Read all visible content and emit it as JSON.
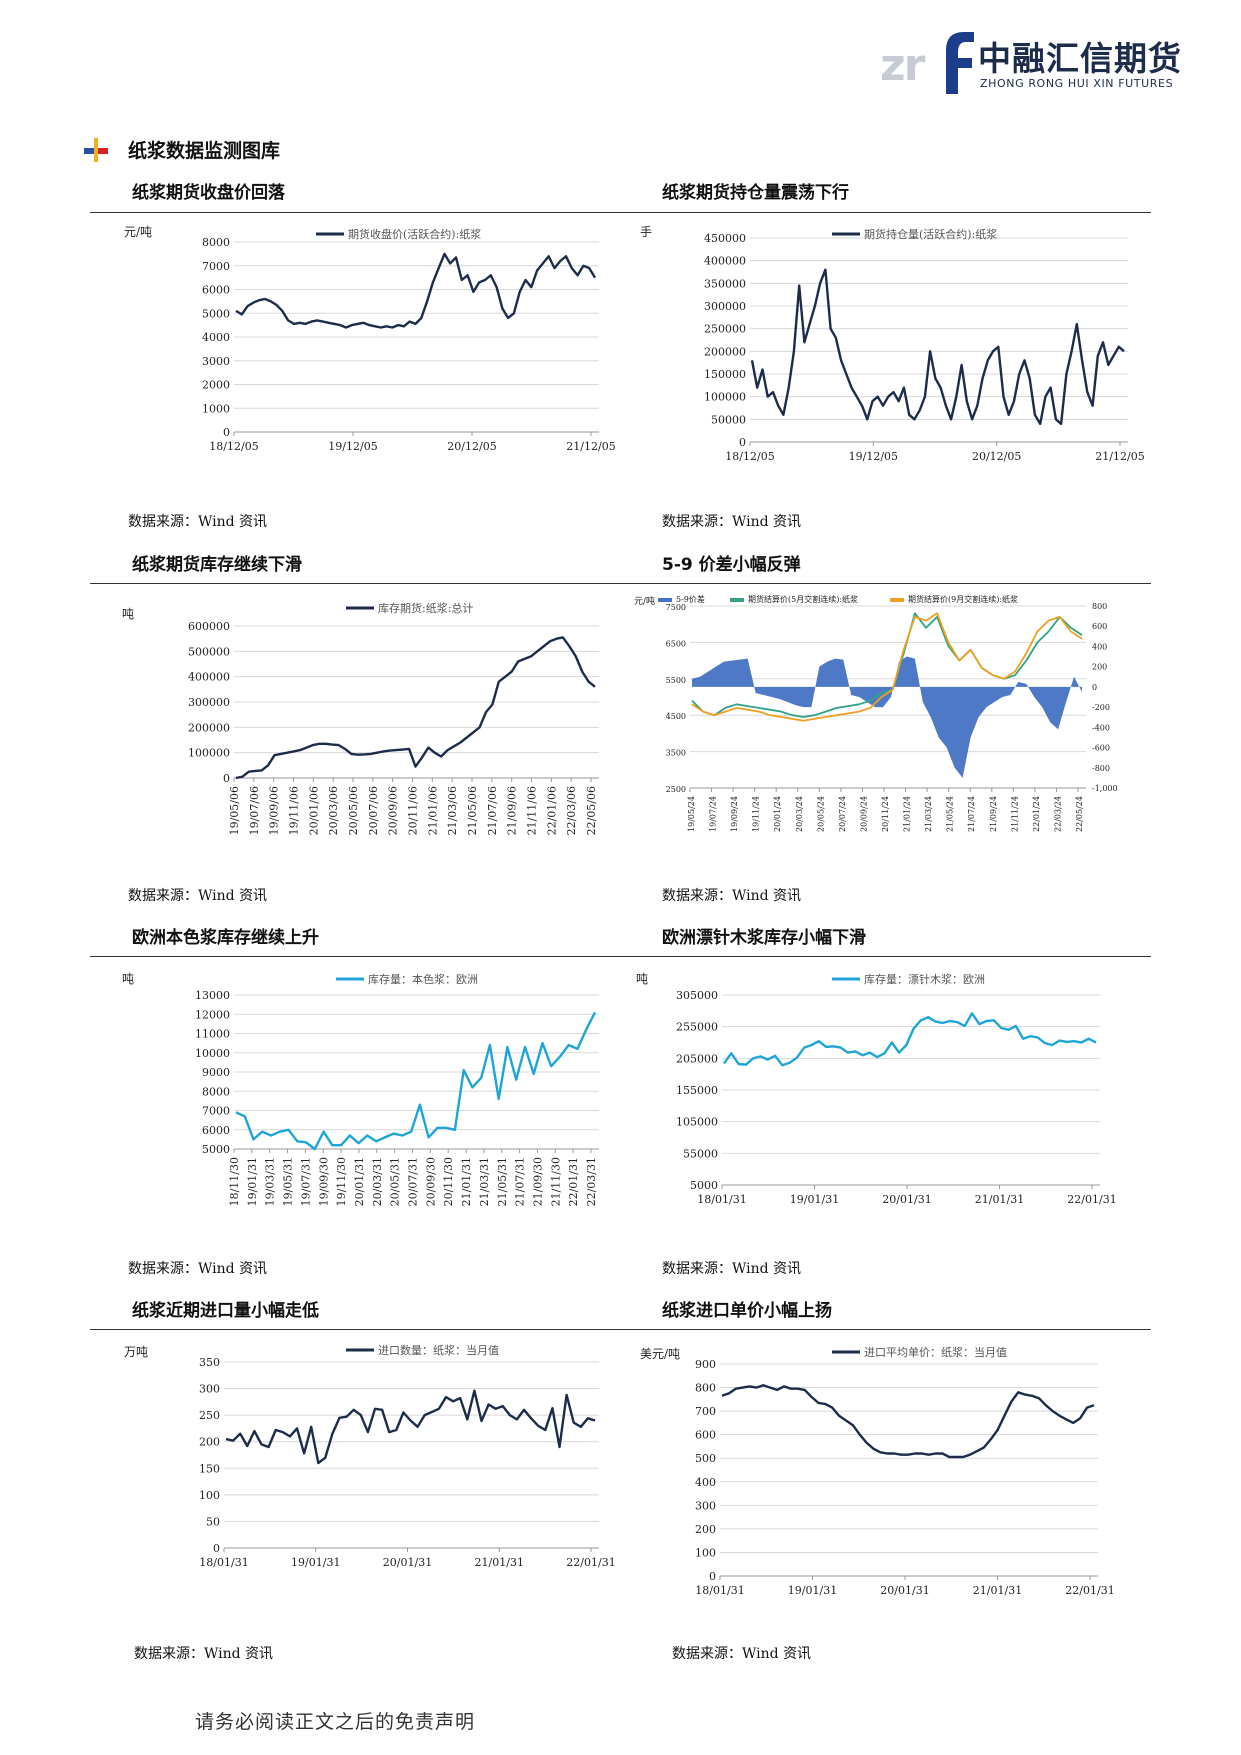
{
  "header": {
    "logo_cn": "中融汇信期货",
    "logo_en": "ZHONG RONG HUI XIN FUTURES",
    "logo_mark": "zrf-logo-icon"
  },
  "section": {
    "title": "纸浆数据监测图库"
  },
  "footer": {
    "text": "请务必阅读正文之后的免责声明"
  },
  "colors": {
    "navy": "#1c2c4a",
    "cyan": "#1ea5d8",
    "blue": "#4472c4",
    "teal": "#2fa38a",
    "orange": "#f0a020"
  },
  "charts": [
    {
      "id": "c1",
      "heading": "纸浆期货收盘价回落",
      "source": "数据来源：Wind 资讯",
      "chart_data": {
        "type": "line",
        "unit": "元/吨",
        "ylim": [
          0,
          8000
        ],
        "yticks": [
          "0",
          "1000",
          "2000",
          "3000",
          "4000",
          "5000",
          "6000",
          "7000",
          "8000"
        ],
        "xticks": [
          "18/12/05",
          "19/12/05",
          "20/12/05",
          "21/12/05"
        ],
        "series": [
          {
            "name": "期货收盘价(活跃合约):纸浆",
            "color": "#1c2c4a",
            "values": [
              5100,
              4950,
              5300,
              5450,
              5550,
              5600,
              5500,
              5350,
              5100,
              4700,
              4550,
              4600,
              4550,
              4650,
              4700,
              4650,
              4600,
              4550,
              4500,
              4400,
              4500,
              4550,
              4600,
              4500,
              4450,
              4400,
              4450,
              4400,
              4500,
              4450,
              4650,
              4550,
              4800,
              5500,
              6300,
              6900,
              7500,
              7100,
              7350,
              6400,
              6600,
              5900,
              6300,
              6400,
              6600,
              6100,
              5200,
              4800,
              5000,
              5900,
              6400,
              6100,
              6800,
              7100,
              7400,
              6900,
              7200,
              7400,
              6900,
              6600,
              7000,
              6900,
              6500
            ]
          }
        ]
      }
    },
    {
      "id": "c2",
      "heading": "纸浆期货持仓量震荡下行",
      "source": "数据来源：Wind 资讯",
      "chart_data": {
        "type": "line",
        "unit": "手",
        "ylim": [
          0,
          450000
        ],
        "yticks": [
          "0",
          "50000",
          "100000",
          "150000",
          "200000",
          "250000",
          "300000",
          "350000",
          "400000",
          "450000"
        ],
        "xticks": [
          "18/12/05",
          "19/12/05",
          "20/12/05",
          "21/12/05"
        ],
        "series": [
          {
            "name": "期货持仓量(活跃合约):纸浆",
            "color": "#1c2c4a",
            "values": [
              180000,
              120000,
              160000,
              100000,
              110000,
              80000,
              60000,
              120000,
              200000,
              345000,
              220000,
              260000,
              300000,
              350000,
              380000,
              250000,
              230000,
              180000,
              150000,
              120000,
              100000,
              80000,
              50000,
              90000,
              100000,
              80000,
              100000,
              110000,
              90000,
              120000,
              60000,
              50000,
              70000,
              100000,
              200000,
              140000,
              120000,
              80000,
              50000,
              100000,
              170000,
              90000,
              50000,
              80000,
              140000,
              180000,
              200000,
              210000,
              100000,
              60000,
              90000,
              150000,
              180000,
              140000,
              60000,
              40000,
              100000,
              120000,
              50000,
              40000,
              150000,
              200000,
              260000,
              180000,
              110000,
              80000,
              190000,
              220000,
              170000,
              190000,
              210000,
              200000
            ]
          }
        ]
      }
    },
    {
      "id": "c3",
      "heading": "纸浆期货库存继续下滑",
      "source": "数据来源：Wind 资讯",
      "chart_data": {
        "type": "line",
        "unit": "吨",
        "ylim": [
          0,
          600000
        ],
        "yticks": [
          "0",
          "100000",
          "200000",
          "300000",
          "400000",
          "500000",
          "600000"
        ],
        "xticks": [
          "19/05/06",
          "19/07/06",
          "19/09/06",
          "19/11/06",
          "20/01/06",
          "20/03/06",
          "20/05/06",
          "20/07/06",
          "20/09/06",
          "20/11/06",
          "21/01/06",
          "21/03/06",
          "21/05/06",
          "21/07/06",
          "21/09/06",
          "21/11/06",
          "22/01/06",
          "22/03/06",
          "22/05/06"
        ],
        "series": [
          {
            "name": "库存期货:纸浆:总计",
            "color": "#1c2c4a",
            "values": [
              0,
              5000,
              25000,
              28000,
              30000,
              50000,
              90000,
              95000,
              100000,
              105000,
              110000,
              120000,
              130000,
              135000,
              135000,
              132000,
              130000,
              115000,
              95000,
              92000,
              93000,
              95000,
              100000,
              105000,
              108000,
              110000,
              112000,
              115000,
              45000,
              80000,
              120000,
              100000,
              85000,
              110000,
              125000,
              140000,
              160000,
              180000,
              200000,
              260000,
              290000,
              380000,
              400000,
              420000,
              460000,
              470000,
              480000,
              500000,
              520000,
              540000,
              550000,
              555000,
              520000,
              480000,
              420000,
              380000,
              360000
            ]
          }
        ]
      }
    },
    {
      "id": "c4",
      "heading": "5-9 价差小幅反弹",
      "source": "数据来源：Wind 资讯",
      "chart_data": {
        "type": "line",
        "unit": "元/吨",
        "ylim": [
          2500,
          7500
        ],
        "y2lim": [
          -1000,
          800
        ],
        "yticks": [
          "2500",
          "3500",
          "4500",
          "5500",
          "6500",
          "7500"
        ],
        "y2ticks": [
          "-1,000",
          "-800",
          "-600",
          "-400",
          "-200",
          "0",
          "200",
          "400",
          "600",
          "800"
        ],
        "xticks": [
          "19/05/24",
          "19/07/24",
          "19/09/24",
          "19/11/24",
          "20/01/24",
          "20/03/24",
          "20/05/24",
          "20/07/24",
          "20/09/24",
          "20/11/24",
          "21/01/24",
          "21/03/24",
          "21/05/24",
          "21/07/24",
          "21/09/24",
          "21/11/24",
          "22/01/24",
          "22/03/24",
          "22/05/24"
        ],
        "series": [
          {
            "name": "5-9价差",
            "color": "#4472c4",
            "axis": "right",
            "values": [
              80,
              100,
              150,
              200,
              250,
              260,
              270,
              280,
              -60,
              -80,
              -100,
              -120,
              -150,
              -180,
              -200,
              -200,
              200,
              250,
              280,
              270,
              -80,
              -100,
              -150,
              -200,
              -200,
              -100,
              250,
              300,
              280,
              -150,
              -300,
              -500,
              -600,
              -800,
              -900,
              -500,
              -300,
              -200,
              -150,
              -100,
              -80,
              50,
              30,
              -100,
              -200,
              -350,
              -420,
              -150,
              100,
              -50
            ]
          },
          {
            "name": "期货结算价(5月交割连续):纸浆",
            "color": "#2fa38a",
            "axis": "left",
            "values": [
              4900,
              4600,
              4500,
              4700,
              4800,
              4750,
              4700,
              4650,
              4600,
              4500,
              4450,
              4500,
              4600,
              4700,
              4750,
              4800,
              4900,
              5100,
              5200,
              6200,
              7300,
              6900,
              7200,
              6400,
              6000,
              6300,
              5800,
              5600,
              5500,
              5600,
              6000,
              6500,
              6800,
              7200,
              6900,
              6700
            ]
          },
          {
            "name": "期货结算价(9月交割连续):纸浆",
            "color": "#f0a020",
            "axis": "left",
            "values": [
              4800,
              4600,
              4500,
              4600,
              4700,
              4650,
              4600,
              4500,
              4450,
              4400,
              4350,
              4400,
              4450,
              4500,
              4550,
              4600,
              4700,
              5000,
              5200,
              6300,
              7200,
              7100,
              7300,
              6500,
              6000,
              6300,
              5800,
              5600,
              5500,
              5700,
              6200,
              6800,
              7100,
              7200,
              6800,
              6600
            ]
          }
        ]
      }
    },
    {
      "id": "c5",
      "heading": "欧洲本色浆库存继续上升",
      "source": "数据来源：Wind 资讯",
      "chart_data": {
        "type": "line",
        "unit": "吨",
        "ylim": [
          5000,
          13000
        ],
        "yticks": [
          "5000",
          "6000",
          "7000",
          "8000",
          "9000",
          "10000",
          "11000",
          "12000",
          "13000"
        ],
        "xticks": [
          "18/11/30",
          "19/01/31",
          "19/03/31",
          "19/05/31",
          "19/07/31",
          "19/09/30",
          "19/11/30",
          "20/01/31",
          "20/03/31",
          "20/05/31",
          "20/07/31",
          "20/09/30",
          "20/11/30",
          "21/01/31",
          "21/03/31",
          "21/05/31",
          "21/07/31",
          "21/09/30",
          "21/11/30",
          "22/01/31",
          "22/03/31"
        ],
        "series": [
          {
            "name": "库存量：本色浆：欧洲",
            "color": "#1ea5d8",
            "values": [
              6900,
              6700,
              5500,
              5900,
              5700,
              5900,
              6000,
              5400,
              5350,
              5000,
              5900,
              5200,
              5200,
              5700,
              5300,
              5700,
              5400,
              5600,
              5800,
              5700,
              5900,
              7300,
              5600,
              6100,
              6100,
              6000,
              9100,
              8200,
              8700,
              10400,
              7600,
              10300,
              8600,
              10300,
              8900,
              10500,
              9300,
              9800,
              10400,
              10200,
              11200,
              12100
            ]
          }
        ]
      }
    },
    {
      "id": "c6",
      "heading": "欧洲漂针木浆库存小幅下滑",
      "source": "数据来源：Wind 资讯",
      "chart_data": {
        "type": "line",
        "unit": "吨",
        "ylim": [
          5000,
          305000
        ],
        "yticks": [
          "5000",
          "55000",
          "105000",
          "155000",
          "205000",
          "255000",
          "305000"
        ],
        "xticks": [
          "18/01/31",
          "19/01/31",
          "20/01/31",
          "21/01/31",
          "22/01/31"
        ],
        "series": [
          {
            "name": "库存量：漂针木浆：欧洲",
            "color": "#1ea5d8",
            "values": [
              197000,
              213000,
              196000,
              195000,
              205000,
              208000,
              203000,
              209000,
              194000,
              198000,
              206000,
              222000,
              226000,
              232000,
              223000,
              224000,
              222000,
              214000,
              216000,
              210000,
              214000,
              207000,
              213000,
              230000,
              214000,
              226000,
              252000,
              265000,
              270000,
              263000,
              261000,
              264000,
              262000,
              256000,
              276000,
              259000,
              264000,
              265000,
              253000,
              250000,
              256000,
              236000,
              240000,
              238000,
              229000,
              226000,
              233000,
              231000,
              232000,
              230000,
              236000,
              230000
            ]
          }
        ]
      }
    },
    {
      "id": "c7",
      "heading": "纸浆近期进口量小幅走低",
      "source": "数据来源：Wind 资讯",
      "chart_data": {
        "type": "line",
        "unit": "万吨",
        "ylim": [
          0,
          350
        ],
        "yticks": [
          "0",
          "50",
          "100",
          "150",
          "200",
          "250",
          "300",
          "350"
        ],
        "xticks": [
          "18/01/31",
          "19/01/31",
          "20/01/31",
          "21/01/31",
          "22/01/31"
        ],
        "series": [
          {
            "name": "进口数量：纸浆：当月值",
            "color": "#1c2c4a",
            "values": [
              205,
              202,
              215,
              192,
              220,
              195,
              190,
              222,
              218,
              210,
              225,
              178,
              228,
              160,
              170,
              215,
              245,
              247,
              260,
              250,
              218,
              262,
              260,
              218,
              222,
              255,
              240,
              228,
              250,
              256,
              262,
              284,
              276,
              282,
              242,
              296,
              239,
              270,
              262,
              267,
              250,
              242,
              260,
              244,
              230,
              222,
              263,
              190,
              288,
              236,
              228,
              244,
              240
            ]
          }
        ]
      }
    },
    {
      "id": "c8",
      "heading": "纸浆进口单价小幅上扬",
      "source": "数据来源：Wind 资讯",
      "chart_data": {
        "type": "line",
        "unit": "美元/吨",
        "ylim": [
          0,
          900
        ],
        "yticks": [
          "0",
          "100",
          "200",
          "300",
          "400",
          "500",
          "600",
          "700",
          "800",
          "900"
        ],
        "xticks": [
          "18/01/31",
          "19/01/31",
          "20/01/31",
          "21/01/31",
          "22/01/31"
        ],
        "series": [
          {
            "name": "进口平均单价：纸浆：当月值",
            "color": "#1c2c4a",
            "values": [
              765,
              775,
              795,
              800,
              805,
              800,
              810,
              800,
              790,
              805,
              795,
              795,
              790,
              760,
              735,
              730,
              715,
              680,
              660,
              640,
              600,
              565,
              540,
              525,
              520,
              520,
              515,
              515,
              520,
              520,
              515,
              520,
              520,
              505,
              505,
              505,
              515,
              530,
              545,
              580,
              620,
              680,
              740,
              780,
              770,
              765,
              755,
              725,
              700,
              680,
              665,
              650,
              670,
              715,
              725
            ]
          }
        ]
      }
    }
  ]
}
